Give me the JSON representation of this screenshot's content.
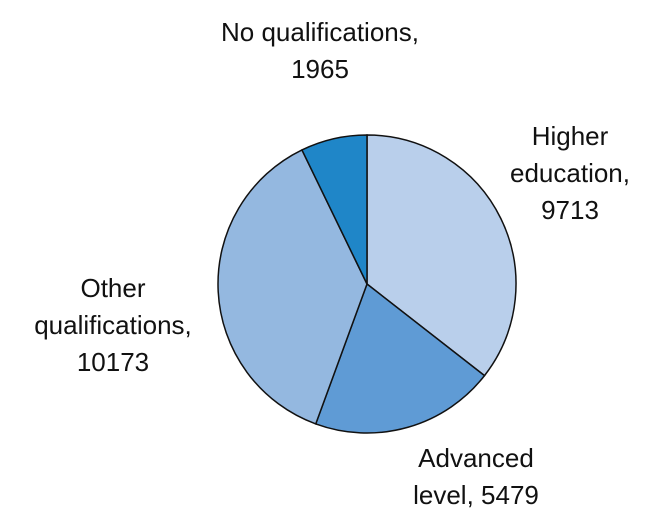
{
  "chart_data": {
    "type": "pie",
    "categories": [
      "Higher education",
      "Advanced level",
      "Other qualifications",
      "No qualifications"
    ],
    "values": [
      9713,
      5479,
      10173,
      1965
    ],
    "colors": [
      "#b9cfeb",
      "#5f9bd5",
      "#94b8e0",
      "#1f86c8"
    ]
  }
}
